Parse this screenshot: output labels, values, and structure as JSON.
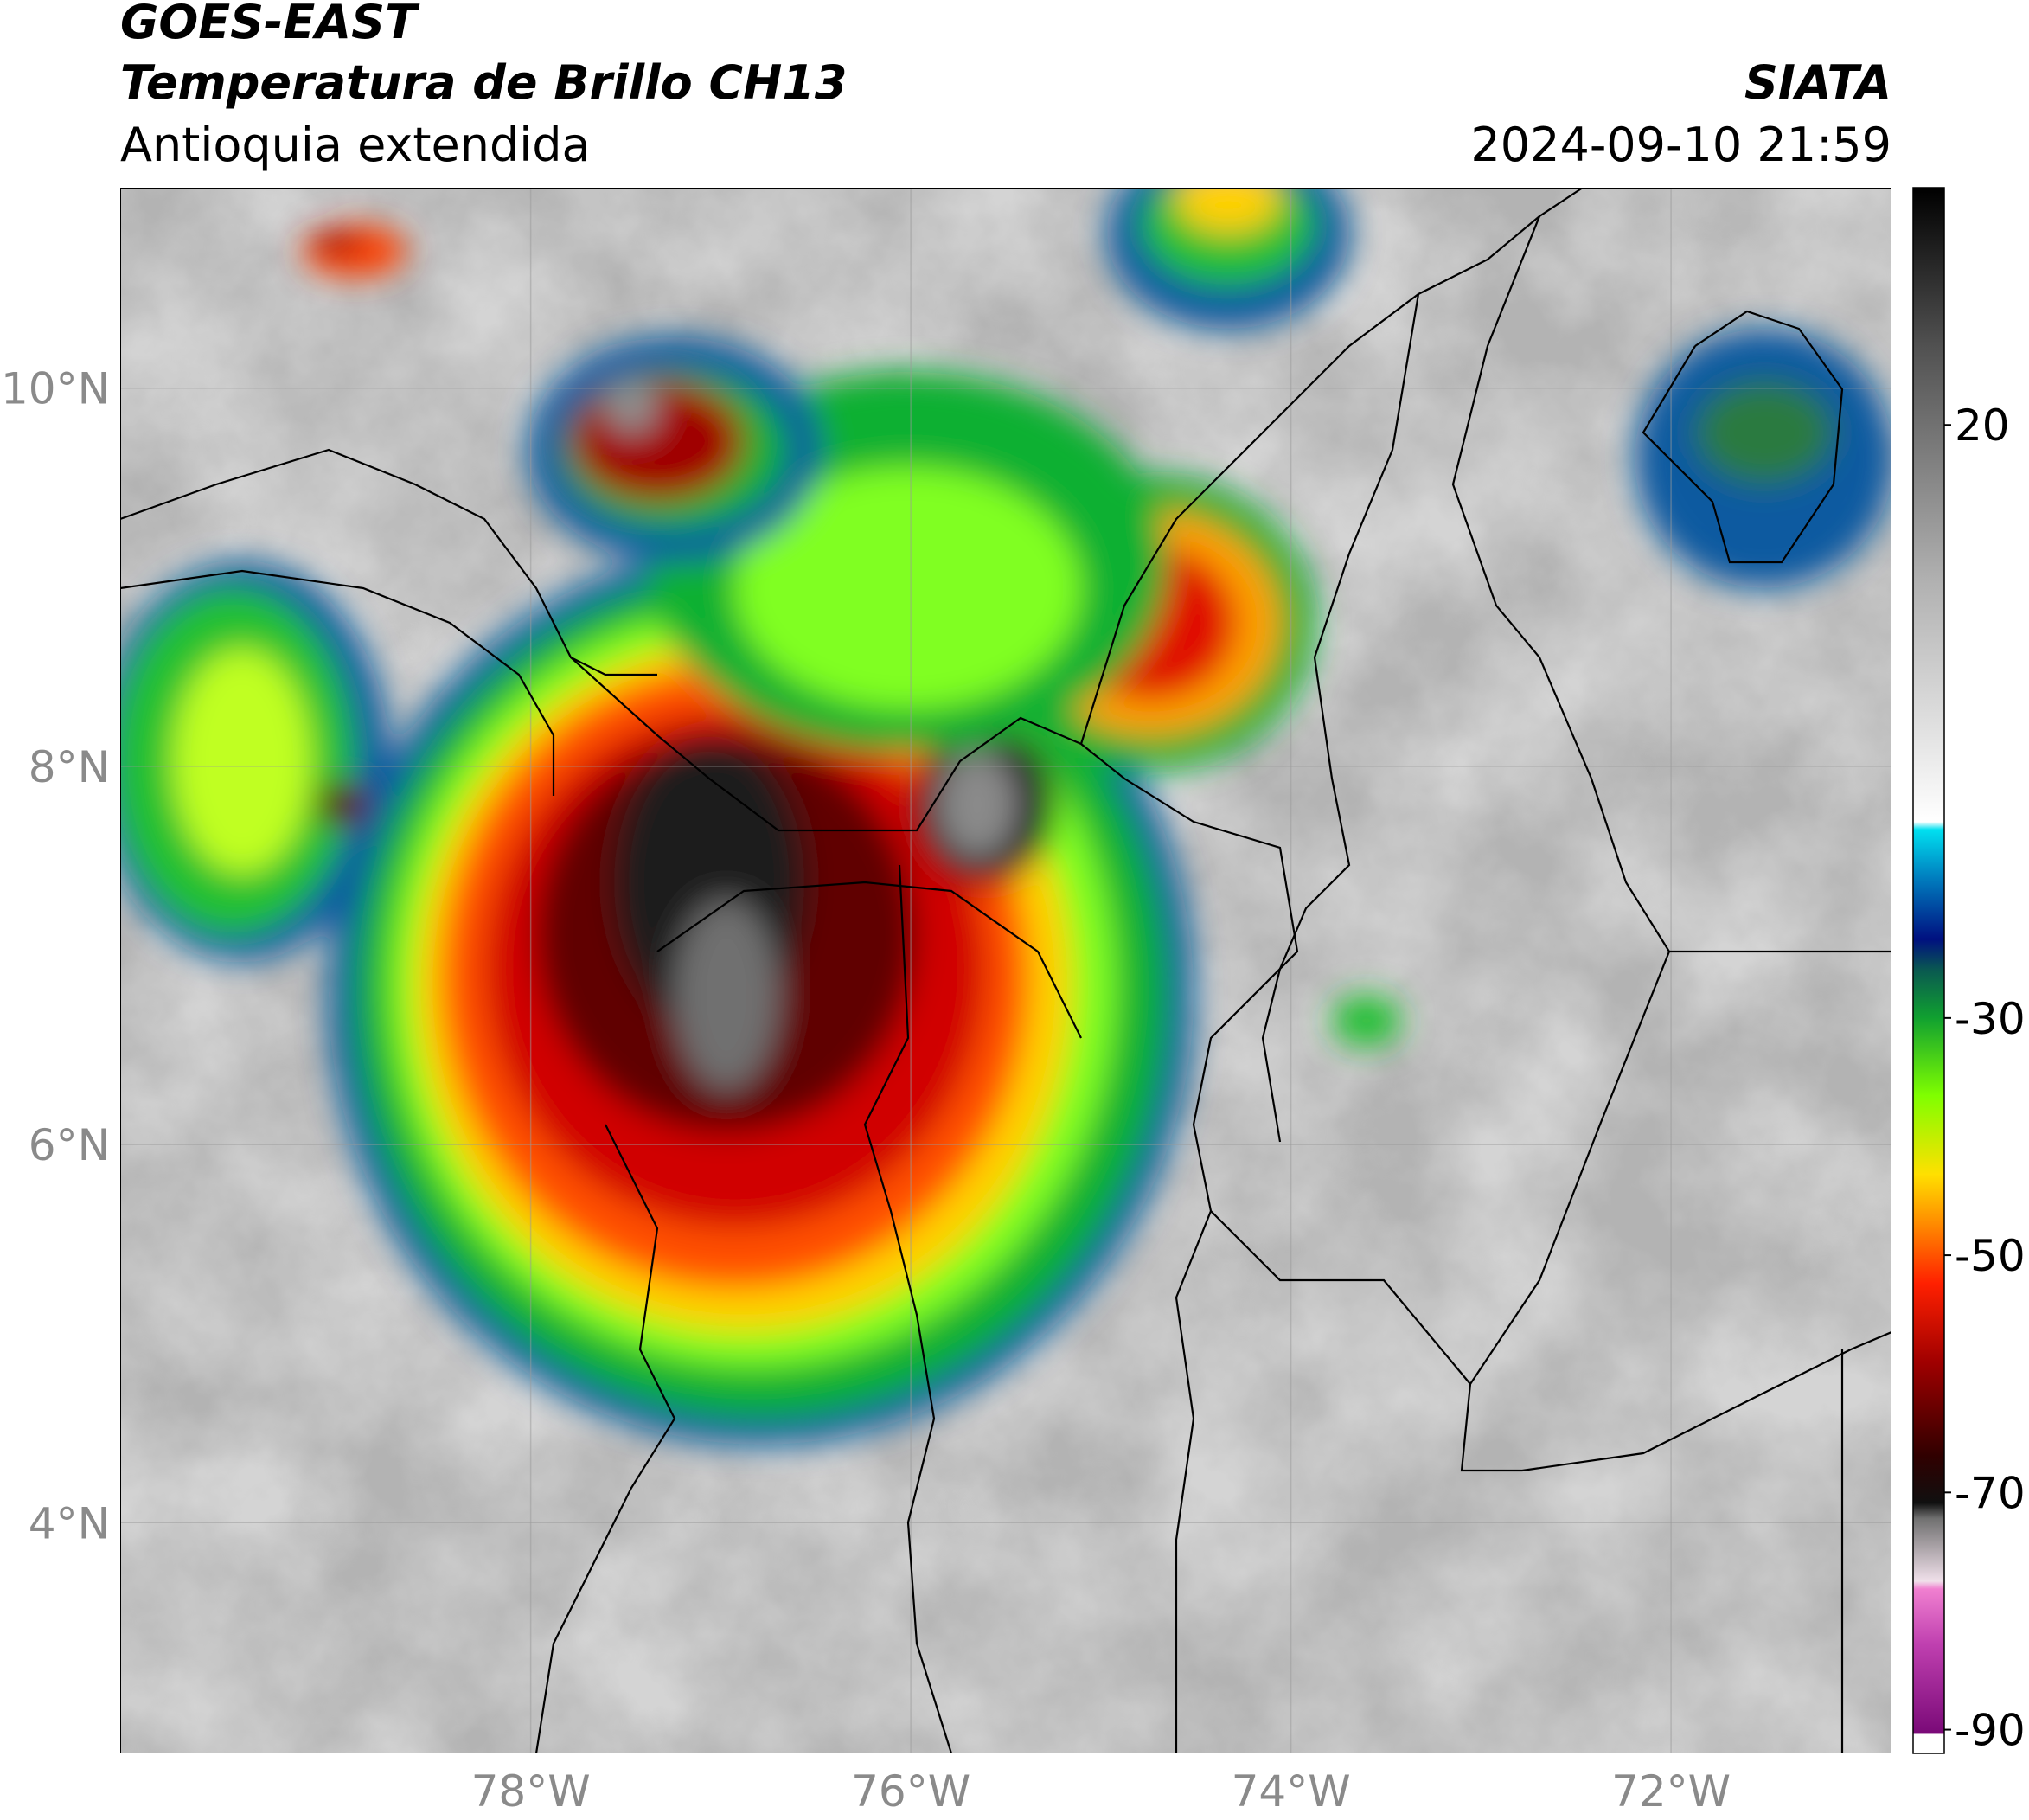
{
  "header": {
    "title": "GOES-EAST",
    "subtitle": "Temperatura de Brillo CH13",
    "region": "Antioquia extendida",
    "source": "SIATA",
    "datetime": "2024-09-10 21:59"
  },
  "map": {
    "xlim": [
      -80.16,
      -70.84
    ],
    "ylim": [
      2.78,
      11.06
    ],
    "xticks": [
      {
        "value": -78,
        "label": "78°W"
      },
      {
        "value": -76,
        "label": "76°W"
      },
      {
        "value": -74,
        "label": "74°W"
      },
      {
        "value": -72,
        "label": "72°W"
      }
    ],
    "yticks": [
      {
        "value": 4,
        "label": "4°N"
      },
      {
        "value": 6,
        "label": "6°N"
      },
      {
        "value": 8,
        "label": "8°N"
      },
      {
        "value": 10,
        "label": "10°N"
      }
    ],
    "grid": true
  },
  "colorbar": {
    "lim": [
      -92,
      40
    ],
    "ticks": [
      20,
      -30,
      -50,
      -70,
      -90
    ]
  }
}
